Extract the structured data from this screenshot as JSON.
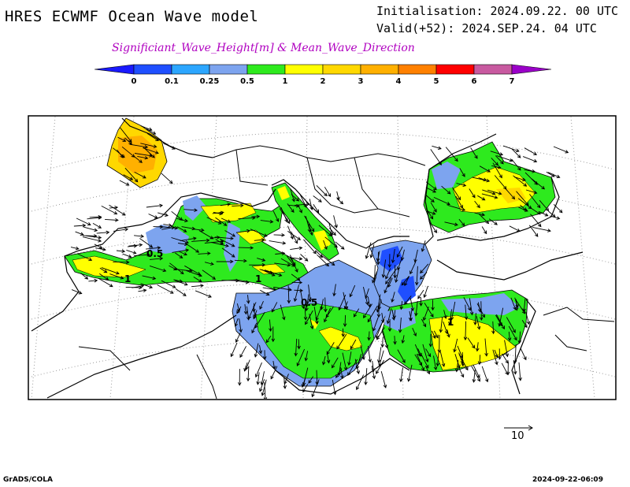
{
  "header": {
    "title": "HRES ECWMF Ocean Wave model",
    "initialisation": "Initialisation: 2024.09.22. 00 UTC",
    "valid": "Valid(+52): 2024.SEP.24. 04 UTC",
    "subtitle": "Significiant_Wave_Height[m] & Mean_Wave_Direction"
  },
  "legend": {
    "ticks": [
      "0",
      "0.1",
      "0.25",
      "0.5",
      "1",
      "2",
      "3",
      "4",
      "5",
      "6",
      "7"
    ],
    "colors": [
      "#1a1aff",
      "#1f4fff",
      "#2ca6ff",
      "#7da4ef",
      "#2eea1e",
      "#ffff00",
      "#ffd800",
      "#ffb000",
      "#ff8000",
      "#ff0000",
      "#c85aa0",
      "#9a00c8"
    ]
  },
  "map": {
    "contour_labels": [
      "0.5",
      "1",
      "1",
      "0.5",
      "1"
    ],
    "reference_vector_label": "10"
  },
  "footer": {
    "left": "GrADS/COLA",
    "right": "2024-09-22-06:09"
  }
}
